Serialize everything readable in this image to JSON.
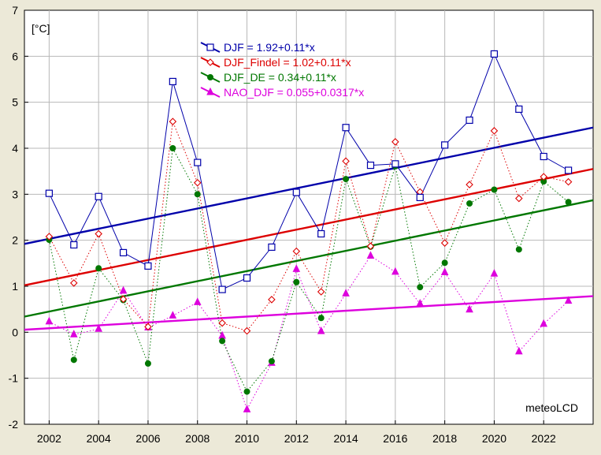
{
  "chart_data": {
    "type": "line",
    "unit_label": "[°C]",
    "watermark": "meteoLCD",
    "ylim": [
      -2,
      7
    ],
    "yticks": [
      "-2",
      "-1",
      "0",
      "1",
      "2",
      "3",
      "4",
      "5",
      "6",
      "7"
    ],
    "xlim": [
      2001,
      2024
    ],
    "xticks": [
      "2002",
      "2004",
      "2006",
      "2008",
      "2010",
      "2012",
      "2014",
      "2016",
      "2018",
      "2020",
      "2022"
    ],
    "x": [
      2002,
      2003,
      2004,
      2005,
      2006,
      2007,
      2008,
      2009,
      2010,
      2011,
      2012,
      2013,
      2014,
      2015,
      2016,
      2017,
      2018,
      2019,
      2020,
      2021,
      2022,
      2023
    ],
    "series": [
      {
        "name": "DJF",
        "legend": "DJF = 1.92+0.11*x",
        "color": "#0000aa",
        "marker": "square",
        "line_style": "solid",
        "values": [
          3.02,
          1.9,
          2.95,
          1.73,
          1.44,
          5.45,
          3.69,
          0.93,
          1.18,
          1.85,
          3.04,
          2.14,
          4.45,
          3.63,
          3.66,
          2.93,
          4.07,
          4.61,
          6.05,
          4.85,
          3.82,
          3.52
        ],
        "trend": {
          "intercept": 1.92,
          "slope": 0.11
        }
      },
      {
        "name": "DJF_Findel",
        "legend": "DJF_Findel = 1.02+0.11*x",
        "color": "#dd0000",
        "marker": "diamond",
        "line_style": "dotted",
        "values": [
          2.08,
          1.07,
          2.14,
          0.72,
          0.12,
          4.58,
          3.25,
          0.2,
          0.03,
          0.71,
          1.76,
          0.88,
          3.72,
          1.87,
          4.14,
          3.05,
          1.94,
          3.21,
          4.38,
          2.91,
          3.38,
          3.27
        ],
        "trend": {
          "intercept": 1.02,
          "slope": 0.11
        }
      },
      {
        "name": "DJF_DE",
        "legend": "DJF_DE = 0.34+0.11*x",
        "color": "#007700",
        "marker": "circle",
        "line_style": "dotted",
        "values": [
          2.01,
          -0.6,
          1.39,
          0.7,
          -0.68,
          4.0,
          3.0,
          -0.19,
          -1.29,
          -0.63,
          1.09,
          0.31,
          3.33,
          1.86,
          3.61,
          0.98,
          1.51,
          2.8,
          3.1,
          1.8,
          3.28,
          2.83
        ],
        "trend": {
          "intercept": 0.34,
          "slope": 0.11
        }
      },
      {
        "name": "NAO_DJF",
        "legend": "NAO_DJF = 0.055+0.0317*x",
        "color": "#dd00dd",
        "marker": "triangle",
        "line_style": "dotted",
        "values": [
          0.23,
          -0.05,
          0.07,
          0.9,
          0.1,
          0.36,
          0.65,
          -0.08,
          -1.68,
          -0.67,
          1.37,
          0.02,
          0.84,
          1.66,
          1.31,
          0.62,
          1.3,
          0.49,
          1.27,
          -0.42,
          0.18,
          0.68
        ],
        "trend": {
          "intercept": 0.055,
          "slope": 0.0317
        }
      }
    ]
  }
}
